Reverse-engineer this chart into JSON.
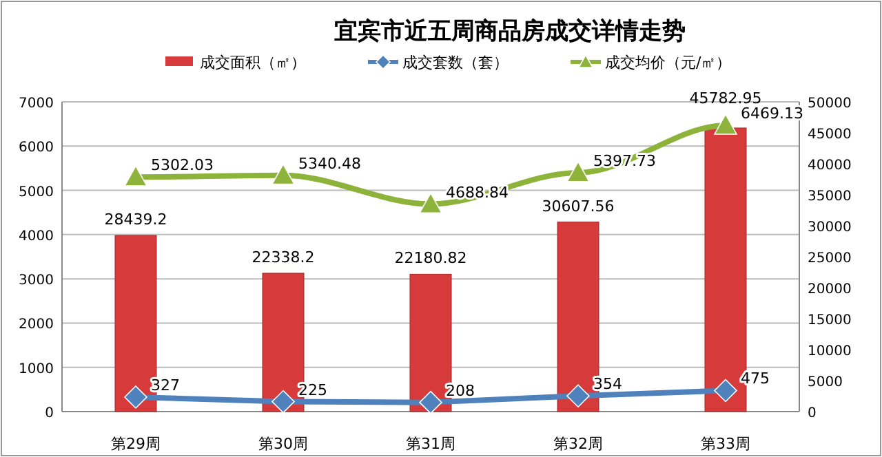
{
  "chart_data": {
    "type": "bar",
    "title": "宜宾市近五周商品房成交详情走势",
    "categories": [
      "第29周",
      "第30周",
      "第31周",
      "第32周",
      "第33周"
    ],
    "series": [
      {
        "name": "成交面积（㎡）",
        "axis": "y2",
        "color": "#d63a3a",
        "values": [
          28439.2,
          22338.2,
          22180.82,
          30607.56,
          45782.95
        ]
      },
      {
        "name": "成交套数（套）",
        "type": "line",
        "axis": "y",
        "color": "#4f81bd",
        "marker": "diamond",
        "values": [
          327,
          225,
          208,
          354,
          475
        ]
      },
      {
        "name": "成交均价（元/㎡）",
        "type": "line",
        "axis": "y",
        "color": "#8db33a",
        "marker": "triangle",
        "values": [
          5302.03,
          5340.48,
          4688.84,
          5397.73,
          6469.13
        ]
      }
    ],
    "ylim": [
      0,
      7000
    ],
    "yticks": [
      0,
      1000,
      2000,
      3000,
      4000,
      5000,
      6000,
      7000
    ],
    "y2lim": [
      0,
      50000
    ],
    "y2ticks": [
      0,
      5000,
      10000,
      15000,
      20000,
      25000,
      30000,
      35000,
      40000,
      45000,
      50000
    ],
    "grid": "y",
    "legend": "top",
    "data_labels": true
  }
}
